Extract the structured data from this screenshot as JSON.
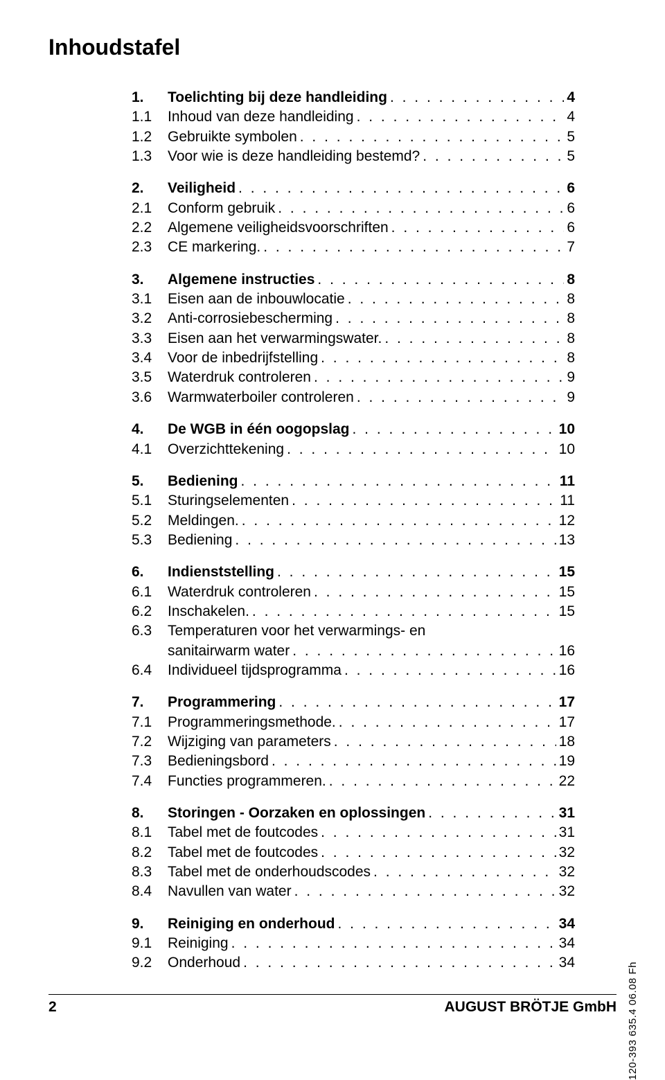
{
  "title": "Inhoudstafel",
  "sideCode": "120-393 635.4 06.08 Fh",
  "footer": {
    "pageNumber": "2",
    "company": "AUGUST BRÖTJE GmbH"
  },
  "colors": {
    "text": "#000000",
    "background": "#ffffff",
    "rule": "#000000"
  },
  "typography": {
    "title_fontsize": 32,
    "body_fontsize": 21,
    "sidecode_fontsize": 15
  },
  "toc": [
    {
      "num": "1.",
      "label": "Toelichting bij deze handleiding",
      "page": "4",
      "items": [
        {
          "num": "1.1",
          "label": "Inhoud van deze handleiding",
          "page": "4"
        },
        {
          "num": "1.2",
          "label": "Gebruikte symbolen",
          "page": "5"
        },
        {
          "num": "1.3",
          "label": "Voor wie is deze handleiding bestemd?",
          "page": "5"
        }
      ]
    },
    {
      "num": "2.",
      "label": "Veiligheid",
      "page": "6",
      "items": [
        {
          "num": "2.1",
          "label": "Conform gebruik",
          "page": "6"
        },
        {
          "num": "2.2",
          "label": "Algemene veiligheidsvoorschriften",
          "page": "6"
        },
        {
          "num": "2.3",
          "label": "CE markering.",
          "page": "7"
        }
      ]
    },
    {
      "num": "3.",
      "label": "Algemene instructies",
      "page": "8",
      "items": [
        {
          "num": "3.1",
          "label": "Eisen aan de inbouwlocatie",
          "page": "8"
        },
        {
          "num": "3.2",
          "label": "Anti-corrosiebescherming",
          "page": "8"
        },
        {
          "num": "3.3",
          "label": "Eisen aan het verwarmingswater.",
          "page": "8"
        },
        {
          "num": "3.4",
          "label": "Voor de inbedrijfstelling",
          "page": "8"
        },
        {
          "num": "3.5",
          "label": "Waterdruk controleren",
          "page": "9"
        },
        {
          "num": "3.6",
          "label": "Warmwaterboiler controleren",
          "page": "9"
        }
      ]
    },
    {
      "num": "4.",
      "label": "De WGB in één oogopslag",
      "page": "10",
      "items": [
        {
          "num": "4.1",
          "label": "Overzichttekening",
          "page": "10"
        }
      ]
    },
    {
      "num": "5.",
      "label": "Bediening",
      "page": "11",
      "items": [
        {
          "num": "5.1",
          "label": "Sturingselementen",
          "page": "11"
        },
        {
          "num": "5.2",
          "label": "Meldingen.",
          "page": "12"
        },
        {
          "num": "5.3",
          "label": "Bediening",
          "page": "13"
        }
      ]
    },
    {
      "num": "6.",
      "label": "Indienststelling",
      "page": "15",
      "items": [
        {
          "num": "6.1",
          "label": "Waterdruk controleren",
          "page": "15"
        },
        {
          "num": "6.2",
          "label": "Inschakelen.",
          "page": "15"
        },
        {
          "num": "6.3",
          "label": "Temperaturen voor het verwarmings- en",
          "label2": "sanitairwarm water",
          "page": "16",
          "wrap": true
        },
        {
          "num": "6.4",
          "label": "Individueel tijdsprogramma",
          "page": "16"
        }
      ]
    },
    {
      "num": "7.",
      "label": "Programmering",
      "page": "17",
      "items": [
        {
          "num": "7.1",
          "label": "Programmeringsmethode.",
          "page": "17"
        },
        {
          "num": "7.2",
          "label": "Wijziging van parameters",
          "page": "18"
        },
        {
          "num": "7.3",
          "label": "Bedieningsbord",
          "page": "19"
        },
        {
          "num": "7.4",
          "label": "Functies programmeren.",
          "page": "22"
        }
      ]
    },
    {
      "num": "8.",
      "label": "Storingen - Oorzaken en oplossingen",
      "page": "31",
      "items": [
        {
          "num": "8.1",
          "label": "Tabel met de foutcodes",
          "page": "31"
        },
        {
          "num": "8.2",
          "label": "Tabel met de foutcodes",
          "page": "32"
        },
        {
          "num": "8.3",
          "label": "Tabel met de onderhoudscodes",
          "page": "32"
        },
        {
          "num": "8.4",
          "label": "Navullen van water",
          "page": "32"
        }
      ]
    },
    {
      "num": "9.",
      "label": "Reiniging en onderhoud",
      "page": "34",
      "items": [
        {
          "num": "9.1",
          "label": "Reiniging",
          "page": "34"
        },
        {
          "num": "9.2",
          "label": "Onderhoud",
          "page": "34"
        }
      ]
    }
  ]
}
